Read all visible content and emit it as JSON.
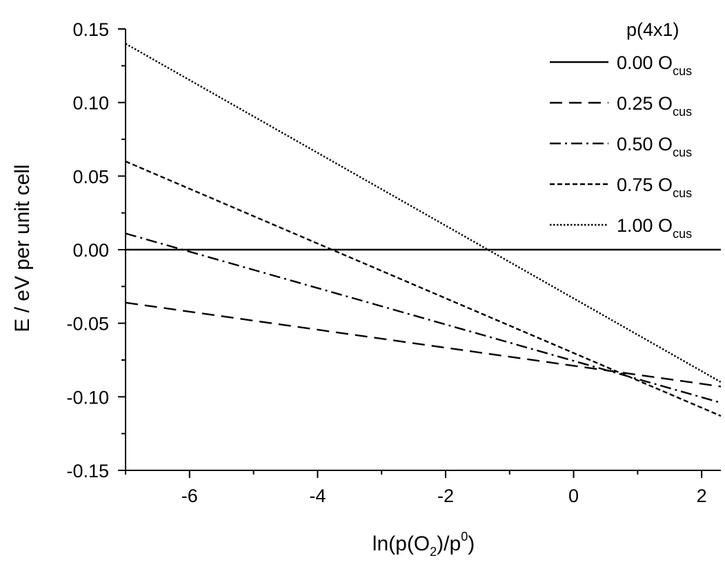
{
  "chart_data": {
    "type": "line",
    "xlabel": "ln(p(O2)/p0)",
    "ylabel": "E / eV per unit cell",
    "xlim": [
      -7,
      2.3
    ],
    "ylim": [
      -0.15,
      0.15
    ],
    "x_ticks": [
      -6,
      -4,
      -2,
      0,
      2
    ],
    "x_tick_labels": [
      "-6",
      "-4",
      "-2",
      "0",
      "2"
    ],
    "y_ticks": [
      -0.15,
      -0.1,
      -0.05,
      0,
      0.05,
      0.1,
      0.15
    ],
    "y_tick_labels": [
      "-0.15",
      "-0.10",
      "-0.05",
      "0.00",
      "0.05",
      "0.10",
      "0.15"
    ],
    "grid": false,
    "legend": {
      "title": "p(4x1)",
      "position": "top-right"
    },
    "series": [
      {
        "name": "0.00 Ocus",
        "label_main": "0.00 O",
        "label_sub": "cus",
        "dash": "solid",
        "x": [
          -7,
          2.3
        ],
        "y": [
          0.0,
          0.0
        ]
      },
      {
        "name": "0.25 Ocus",
        "label_main": "0.25 O",
        "label_sub": "cus",
        "dash": "dash",
        "x": [
          -7,
          2.3
        ],
        "y": [
          -0.036,
          -0.093
        ]
      },
      {
        "name": "0.50 Ocus",
        "label_main": "0.50 O",
        "label_sub": "cus",
        "dash": "dashdot",
        "x": [
          -7,
          2.3
        ],
        "y": [
          0.011,
          -0.104
        ]
      },
      {
        "name": "0.75 Ocus",
        "label_main": "0.75 O",
        "label_sub": "cus",
        "dash": "shortdash",
        "x": [
          -7,
          2.3
        ],
        "y": [
          0.06,
          -0.113
        ]
      },
      {
        "name": "1.00 Ocus",
        "label_main": "1.00 O",
        "label_sub": "cus",
        "dash": "dot",
        "x": [
          -7,
          2.3
        ],
        "y": [
          0.14,
          -0.09
        ]
      }
    ]
  }
}
